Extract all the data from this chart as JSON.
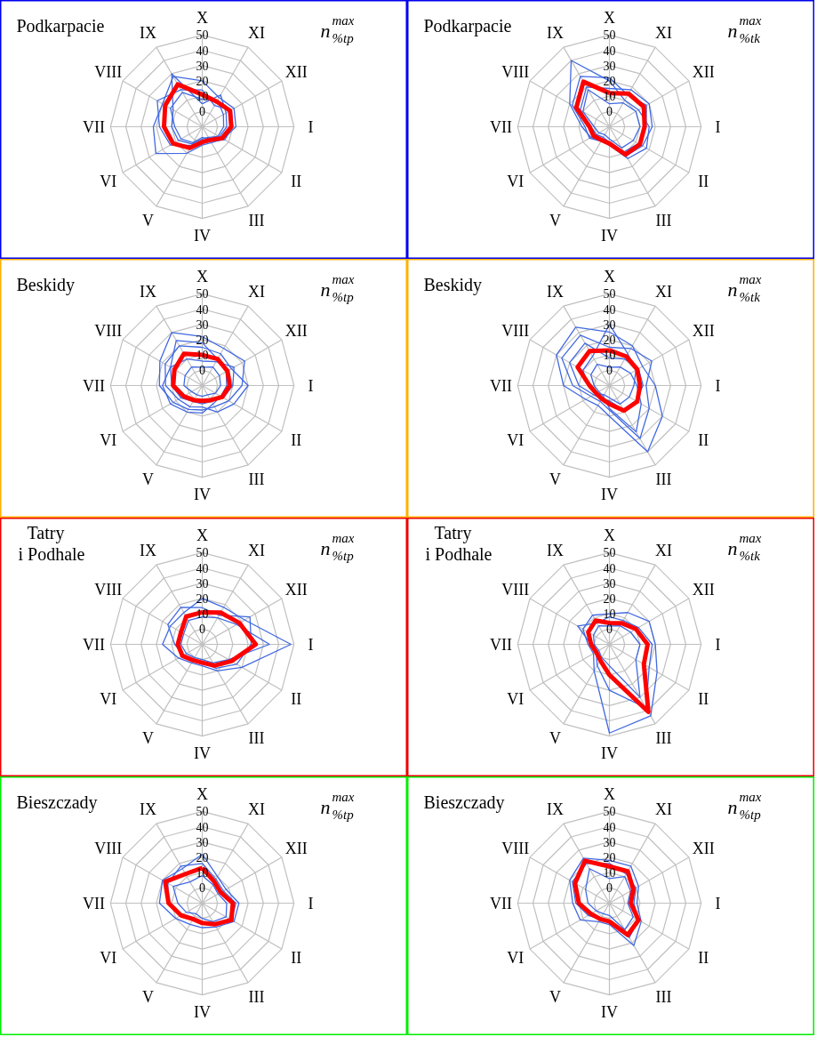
{
  "chart_data": [
    {
      "type": "radar",
      "title": "Podkarpacie",
      "annotations": [
        "n$^{max}$$_{%tp}$"
      ],
      "categories": [
        "X",
        "XI",
        "XII",
        "I",
        "II",
        "III",
        "IV",
        "V",
        "VI",
        "VII",
        "VIII",
        "IX"
      ],
      "ylim": [
        -10,
        50
      ],
      "yticks": [
        0,
        10,
        20,
        30,
        40,
        50
      ],
      "grid": true,
      "series": [
        {
          "color": "#4169e1",
          "values": [
            20,
            12,
            14,
            12,
            6,
            2,
            2,
            10,
            25,
            22,
            20,
            28
          ]
        },
        {
          "color": "#4169e1",
          "values": [
            5,
            14,
            8,
            6,
            3,
            -2,
            -2,
            3,
            8,
            10,
            12,
            30
          ]
        },
        {
          "color": "#4169e1",
          "values": [
            14,
            6,
            12,
            10,
            7,
            1,
            1,
            4,
            14,
            18,
            24,
            18
          ]
        },
        {
          "color": "#4169e1",
          "values": [
            8,
            10,
            6,
            4,
            2,
            -1,
            -3,
            2,
            6,
            8,
            14,
            16
          ]
        },
        {
          "color": "#ff0000",
          "values": [
            11,
            9,
            11,
            9,
            5,
            0,
            0,
            6,
            12,
            15,
            18,
            22
          ]
        }
      ]
    },
    {
      "type": "radar",
      "title": "Podkarpacie",
      "annotations": [
        "n$^{max}$$_{%tk}$"
      ],
      "categories": [
        "X",
        "XI",
        "XII",
        "I",
        "II",
        "III",
        "IV",
        "V",
        "VI",
        "VII",
        "VIII",
        "IX"
      ],
      "ylim": [
        -10,
        50
      ],
      "yticks": [
        0,
        10,
        20,
        30,
        40,
        50
      ],
      "grid": true,
      "series": [
        {
          "color": "#4169e1",
          "values": [
            20,
            10,
            12,
            16,
            18,
            14,
            2,
            0,
            4,
            8,
            20,
            40
          ]
        },
        {
          "color": "#4169e1",
          "values": [
            15,
            18,
            20,
            18,
            15,
            12,
            0,
            -2,
            0,
            2,
            12,
            20
          ]
        },
        {
          "color": "#4169e1",
          "values": [
            5,
            8,
            10,
            10,
            8,
            6,
            -2,
            -4,
            -2,
            0,
            10,
            18
          ]
        },
        {
          "color": "#4169e1",
          "values": [
            22,
            14,
            18,
            14,
            12,
            9,
            2,
            1,
            5,
            6,
            18,
            28
          ]
        },
        {
          "color": "#ff0000",
          "values": [
            12,
            15,
            16,
            13,
            13,
            11,
            1,
            0,
            2,
            3,
            15,
            24
          ]
        }
      ]
    },
    {
      "type": "radar",
      "title": "Beskidy",
      "annotations": [
        "n$^{max}$$_{%tp}$"
      ],
      "categories": [
        "X",
        "XI",
        "XII",
        "I",
        "II",
        "III",
        "IV",
        "V",
        "VI",
        "VII",
        "VIII",
        "IX"
      ],
      "ylim": [
        -10,
        50
      ],
      "yticks": [
        0,
        10,
        20,
        30,
        40,
        50
      ],
      "grid": true,
      "series": [
        {
          "color": "#4169e1",
          "values": [
            22,
            18,
            22,
            16,
            10,
            6,
            6,
            8,
            12,
            18,
            22,
            30
          ]
        },
        {
          "color": "#4169e1",
          "values": [
            2,
            4,
            3,
            2,
            0,
            -3,
            -3,
            -3,
            -2,
            2,
            3,
            4
          ]
        },
        {
          "color": "#4169e1",
          "values": [
            15,
            14,
            12,
            20,
            14,
            10,
            4,
            6,
            8,
            14,
            18,
            20
          ]
        },
        {
          "color": "#4169e1",
          "values": [
            6,
            8,
            14,
            10,
            6,
            2,
            2,
            2,
            6,
            10,
            14,
            10
          ]
        },
        {
          "color": "#4169e1",
          "values": [
            18,
            10,
            8,
            6,
            4,
            4,
            8,
            10,
            14,
            16,
            14,
            24
          ]
        },
        {
          "color": "#ff0000",
          "values": [
            10,
            10,
            9,
            8,
            5,
            1,
            0,
            1,
            4,
            9,
            11,
            14
          ]
        }
      ]
    },
    {
      "type": "radar",
      "title": "Beskidy",
      "annotations": [
        "n$^{max}$$_{%tk}$"
      ],
      "categories": [
        "X",
        "XI",
        "XII",
        "I",
        "II",
        "III",
        "IV",
        "V",
        "VI",
        "VII",
        "VIII",
        "IX"
      ],
      "ylim": [
        -10,
        50
      ],
      "yticks": [
        0,
        10,
        20,
        30,
        40,
        50
      ],
      "grid": true,
      "series": [
        {
          "color": "#4169e1",
          "values": [
            25,
            20,
            15,
            20,
            30,
            40,
            10,
            5,
            8,
            20,
            30,
            34
          ]
        },
        {
          "color": "#4169e1",
          "values": [
            2,
            4,
            6,
            8,
            14,
            25,
            5,
            -2,
            -2,
            0,
            4,
            6
          ]
        },
        {
          "color": "#4169e1",
          "values": [
            15,
            18,
            22,
            14,
            20,
            30,
            6,
            2,
            4,
            14,
            26,
            28
          ]
        },
        {
          "color": "#4169e1",
          "values": [
            8,
            10,
            12,
            12,
            10,
            8,
            0,
            0,
            2,
            10,
            20,
            22
          ]
        },
        {
          "color": "#4169e1",
          "values": [
            30,
            14,
            10,
            6,
            5,
            4,
            -2,
            -3,
            0,
            4,
            10,
            12
          ]
        },
        {
          "color": "#ff0000",
          "values": [
            13,
            12,
            11,
            10,
            11,
            9,
            2,
            0,
            0,
            3,
            14,
            16
          ]
        }
      ]
    },
    {
      "type": "radar",
      "title": "Tatry\ni Podhale",
      "annotations": [
        "n$^{max}$$_{%tp}$"
      ],
      "categories": [
        "X",
        "XI",
        "XII",
        "I",
        "II",
        "III",
        "IV",
        "V",
        "VI",
        "VII",
        "VIII",
        "IX"
      ],
      "ylim": [
        -10,
        50
      ],
      "yticks": [
        0,
        10,
        20,
        30,
        40,
        50
      ],
      "grid": true,
      "series": [
        {
          "color": "#4169e1",
          "values": [
            20,
            18,
            22,
            48,
            20,
            10,
            4,
            4,
            8,
            16,
            14,
            14
          ]
        },
        {
          "color": "#4169e1",
          "values": [
            8,
            10,
            16,
            34,
            10,
            4,
            0,
            0,
            2,
            4,
            4,
            8
          ]
        },
        {
          "color": "#4169e1",
          "values": [
            14,
            12,
            26,
            22,
            16,
            8,
            2,
            1,
            4,
            8,
            16,
            18
          ]
        },
        {
          "color": "#ff0000",
          "values": [
            11,
            14,
            18,
            25,
            12,
            6,
            2,
            2,
            5,
            6,
            6,
            11
          ]
        }
      ]
    },
    {
      "type": "radar",
      "title": "Tatry\ni Podhale",
      "annotations": [
        "n$^{max}$$_{%tk}$"
      ],
      "categories": [
        "X",
        "XI",
        "XII",
        "I",
        "II",
        "III",
        "IV",
        "V",
        "VI",
        "VII",
        "VIII",
        "IX"
      ],
      "ylim": [
        -10,
        50
      ],
      "yticks": [
        0,
        10,
        20,
        30,
        40,
        50
      ],
      "grid": true,
      "series": [
        {
          "color": "#4169e1",
          "values": [
            10,
            14,
            20,
            20,
            26,
            44,
            48,
            10,
            2,
            4,
            10,
            12
          ]
        },
        {
          "color": "#4169e1",
          "values": [
            2,
            4,
            6,
            10,
            10,
            30,
            4,
            0,
            -2,
            0,
            2,
            4
          ]
        },
        {
          "color": "#4169e1",
          "values": [
            8,
            8,
            12,
            18,
            20,
            38,
            20,
            6,
            0,
            2,
            14,
            6
          ]
        },
        {
          "color": "#ff0000",
          "values": [
            4,
            6,
            10,
            15,
            16,
            41,
            10,
            2,
            0,
            2,
            6,
            8
          ]
        }
      ]
    },
    {
      "type": "radar",
      "title": "Bieszczady",
      "annotations": [
        "n$^{max}$$_{%tp}$"
      ],
      "categories": [
        "X",
        "XI",
        "XII",
        "I",
        "II",
        "III",
        "IV",
        "V",
        "VI",
        "VII",
        "VIII",
        "IX"
      ],
      "ylim": [
        -10,
        50
      ],
      "yticks": [
        0,
        10,
        20,
        30,
        40,
        50
      ],
      "grid": true,
      "series": [
        {
          "color": "#4169e1",
          "values": [
            22,
            10,
            8,
            14,
            14,
            8,
            6,
            6,
            10,
            18,
            20,
            16
          ]
        },
        {
          "color": "#4169e1",
          "values": [
            8,
            4,
            2,
            6,
            8,
            4,
            0,
            -2,
            2,
            6,
            12,
            6
          ]
        },
        {
          "color": "#4169e1",
          "values": [
            16,
            8,
            6,
            12,
            12,
            6,
            2,
            2,
            6,
            12,
            16,
            18
          ]
        },
        {
          "color": "#ff0000",
          "values": [
            13,
            6,
            4,
            10,
            12,
            6,
            3,
            2,
            6,
            12,
            18,
            12
          ]
        }
      ]
    },
    {
      "type": "radar",
      "title": "Bieszczady",
      "annotations": [
        "n$^{max}$$_{%tp}$"
      ],
      "categories": [
        "X",
        "XI",
        "XII",
        "I",
        "II",
        "III",
        "IV",
        "V",
        "VI",
        "VII",
        "VIII",
        "IX"
      ],
      "ylim": [
        -10,
        50
      ],
      "yticks": [
        0,
        10,
        20,
        30,
        40,
        50
      ],
      "grid": true,
      "series": [
        {
          "color": "#4169e1",
          "values": [
            18,
            18,
            12,
            8,
            14,
            22,
            4,
            4,
            12,
            14,
            20,
            24
          ]
        },
        {
          "color": "#4169e1",
          "values": [
            6,
            10,
            6,
            2,
            8,
            10,
            -2,
            -2,
            0,
            4,
            8,
            16
          ]
        },
        {
          "color": "#4169e1",
          "values": [
            16,
            12,
            10,
            6,
            12,
            16,
            2,
            2,
            6,
            12,
            18,
            20
          ]
        },
        {
          "color": "#ff0000",
          "values": [
            14,
            14,
            8,
            4,
            12,
            14,
            2,
            2,
            4,
            10,
            16,
            22
          ]
        }
      ]
    }
  ]
}
